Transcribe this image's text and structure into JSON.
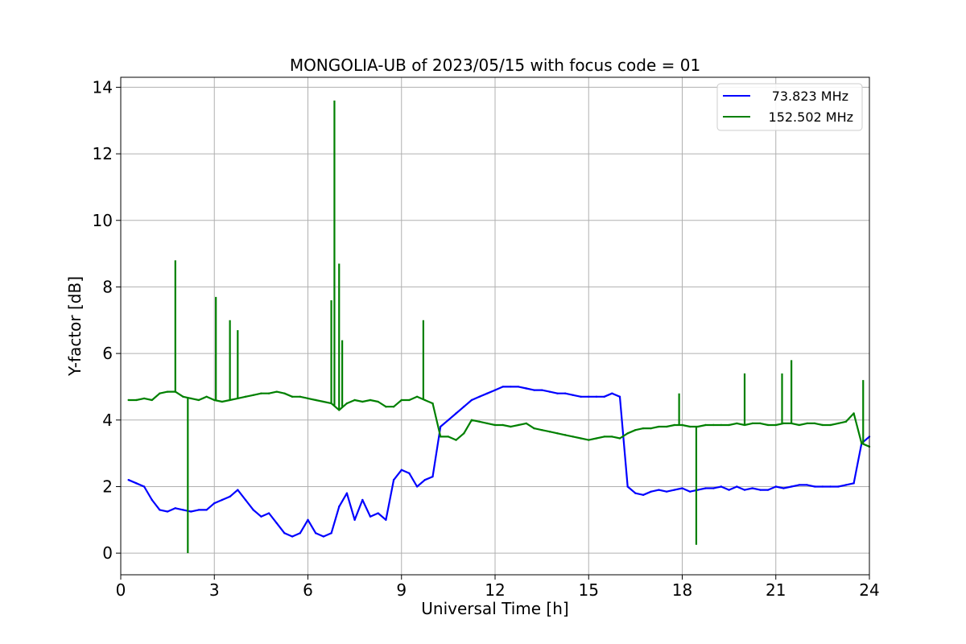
{
  "chart_data": {
    "type": "line",
    "title": "MONGOLIA-UB of 2023/05/15 with focus code = 01",
    "xlabel": "Universal Time [h]",
    "ylabel": "Y-factor [dB]",
    "xlim": [
      0,
      24
    ],
    "ylim": [
      -0.65,
      14.3
    ],
    "xticks": [
      0,
      3,
      6,
      9,
      12,
      15,
      18,
      21,
      24
    ],
    "yticks": [
      0,
      2,
      4,
      6,
      8,
      10,
      12,
      14
    ],
    "xtick_labels": [
      "0",
      "3",
      "6",
      "9",
      "12",
      "15",
      "18",
      "21",
      "24"
    ],
    "ytick_labels": [
      "0",
      "2",
      "4",
      "6",
      "8",
      "10",
      "12",
      "14"
    ],
    "grid": true,
    "legend_position": "top-right",
    "series": [
      {
        "name": "73.823 MHz",
        "color": "#0000ff",
        "x": [
          0.25,
          0.5,
          0.75,
          1.0,
          1.25,
          1.5,
          1.75,
          2.0,
          2.25,
          2.5,
          2.75,
          3.0,
          3.25,
          3.5,
          3.75,
          4.0,
          4.25,
          4.5,
          4.75,
          5.0,
          5.25,
          5.5,
          5.75,
          6.0,
          6.25,
          6.5,
          6.75,
          7.0,
          7.25,
          7.5,
          7.75,
          8.0,
          8.25,
          8.5,
          8.75,
          9.0,
          9.25,
          9.5,
          9.75,
          10.0,
          10.25,
          10.5,
          10.75,
          11.0,
          11.25,
          11.5,
          11.75,
          12.0,
          12.25,
          12.5,
          12.75,
          13.0,
          13.25,
          13.5,
          13.75,
          14.0,
          14.25,
          14.5,
          14.75,
          15.0,
          15.25,
          15.5,
          15.75,
          16.0,
          16.25,
          16.5,
          16.75,
          17.0,
          17.25,
          17.5,
          17.75,
          18.0,
          18.25,
          18.5,
          18.75,
          19.0,
          19.25,
          19.5,
          19.75,
          20.0,
          20.25,
          20.5,
          20.75,
          21.0,
          21.25,
          21.5,
          21.75,
          22.0,
          22.25,
          22.5,
          22.75,
          23.0,
          23.25,
          23.5,
          23.75,
          24.0
        ],
        "y": [
          2.2,
          2.1,
          2.0,
          1.6,
          1.3,
          1.25,
          1.35,
          1.3,
          1.25,
          1.3,
          1.3,
          1.5,
          1.6,
          1.7,
          1.9,
          1.6,
          1.3,
          1.1,
          1.2,
          0.9,
          0.6,
          0.5,
          0.6,
          1.0,
          0.6,
          0.5,
          0.6,
          1.4,
          1.8,
          1.0,
          1.6,
          1.1,
          1.2,
          1.0,
          2.2,
          2.5,
          2.4,
          2.0,
          2.2,
          2.3,
          3.8,
          4.0,
          4.2,
          4.4,
          4.6,
          4.7,
          4.8,
          4.9,
          5.0,
          5.0,
          5.0,
          4.95,
          4.9,
          4.9,
          4.85,
          4.8,
          4.8,
          4.75,
          4.7,
          4.7,
          4.7,
          4.7,
          4.8,
          4.7,
          2.0,
          1.8,
          1.75,
          1.85,
          1.9,
          1.85,
          1.9,
          1.95,
          1.85,
          1.9,
          1.95,
          1.95,
          2.0,
          1.9,
          2.0,
          1.9,
          1.95,
          1.9,
          1.9,
          2.0,
          1.95,
          2.0,
          2.05,
          2.05,
          2.0,
          2.0,
          2.0,
          2.0,
          2.05,
          2.1,
          3.3,
          3.5
        ]
      },
      {
        "name": "152.502 MHz",
        "color": "#008000",
        "x": [
          0.25,
          0.5,
          0.75,
          1.0,
          1.25,
          1.5,
          1.75,
          2.0,
          2.25,
          2.5,
          2.75,
          3.0,
          3.25,
          3.5,
          3.75,
          4.0,
          4.25,
          4.5,
          4.75,
          5.0,
          5.25,
          5.5,
          5.75,
          6.0,
          6.25,
          6.5,
          6.75,
          7.0,
          7.25,
          7.5,
          7.75,
          8.0,
          8.25,
          8.5,
          8.75,
          9.0,
          9.25,
          9.5,
          9.75,
          10.0,
          10.25,
          10.5,
          10.75,
          11.0,
          11.25,
          11.5,
          11.75,
          12.0,
          12.25,
          12.5,
          12.75,
          13.0,
          13.25,
          13.5,
          13.75,
          14.0,
          14.25,
          14.5,
          14.75,
          15.0,
          15.25,
          15.5,
          15.75,
          16.0,
          16.25,
          16.5,
          16.75,
          17.0,
          17.25,
          17.5,
          17.75,
          18.0,
          18.25,
          18.5,
          18.75,
          19.0,
          19.25,
          19.5,
          19.75,
          20.0,
          20.25,
          20.5,
          20.75,
          21.0,
          21.25,
          21.5,
          21.75,
          22.0,
          22.25,
          22.5,
          22.75,
          23.0,
          23.25,
          23.5,
          23.75,
          24.0
        ],
        "y": [
          4.6,
          4.6,
          4.65,
          4.6,
          4.8,
          4.85,
          4.85,
          4.7,
          4.65,
          4.6,
          4.7,
          4.6,
          4.55,
          4.6,
          4.65,
          4.7,
          4.75,
          4.8,
          4.8,
          4.85,
          4.8,
          4.7,
          4.7,
          4.65,
          4.6,
          4.55,
          4.5,
          4.3,
          4.5,
          4.6,
          4.55,
          4.6,
          4.55,
          4.4,
          4.4,
          4.6,
          4.6,
          4.7,
          4.6,
          4.5,
          3.5,
          3.5,
          3.4,
          3.6,
          4.0,
          3.95,
          3.9,
          3.85,
          3.85,
          3.8,
          3.85,
          3.9,
          3.75,
          3.7,
          3.65,
          3.6,
          3.55,
          3.5,
          3.45,
          3.4,
          3.45,
          3.5,
          3.5,
          3.45,
          3.6,
          3.7,
          3.75,
          3.75,
          3.8,
          3.8,
          3.85,
          3.85,
          3.8,
          3.8,
          3.85,
          3.85,
          3.85,
          3.85,
          3.9,
          3.85,
          3.9,
          3.9,
          3.85,
          3.85,
          3.9,
          3.9,
          3.85,
          3.9,
          3.9,
          3.85,
          3.85,
          3.9,
          3.95,
          4.2,
          3.3,
          3.2
        ]
      }
    ],
    "spikes": [
      {
        "series": "152.502 MHz",
        "x": 1.75,
        "y": 8.8
      },
      {
        "series": "152.502 MHz",
        "x": 2.15,
        "y": 0.0
      },
      {
        "series": "152.502 MHz",
        "x": 3.05,
        "y": 7.7
      },
      {
        "series": "152.502 MHz",
        "x": 3.5,
        "y": 7.0
      },
      {
        "series": "152.502 MHz",
        "x": 3.75,
        "y": 6.7
      },
      {
        "series": "152.502 MHz",
        "x": 6.75,
        "y": 7.6
      },
      {
        "series": "152.502 MHz",
        "x": 6.85,
        "y": 13.6
      },
      {
        "series": "152.502 MHz",
        "x": 7.0,
        "y": 8.7
      },
      {
        "series": "152.502 MHz",
        "x": 7.1,
        "y": 6.4
      },
      {
        "series": "152.502 MHz",
        "x": 9.7,
        "y": 7.0
      },
      {
        "series": "152.502 MHz",
        "x": 17.9,
        "y": 4.8
      },
      {
        "series": "152.502 MHz",
        "x": 18.45,
        "y": 0.25
      },
      {
        "series": "152.502 MHz",
        "x": 20.0,
        "y": 5.4
      },
      {
        "series": "152.502 MHz",
        "x": 21.2,
        "y": 5.4
      },
      {
        "series": "152.502 MHz",
        "x": 21.5,
        "y": 5.8
      },
      {
        "series": "152.502 MHz",
        "x": 23.8,
        "y": 5.2
      }
    ]
  }
}
